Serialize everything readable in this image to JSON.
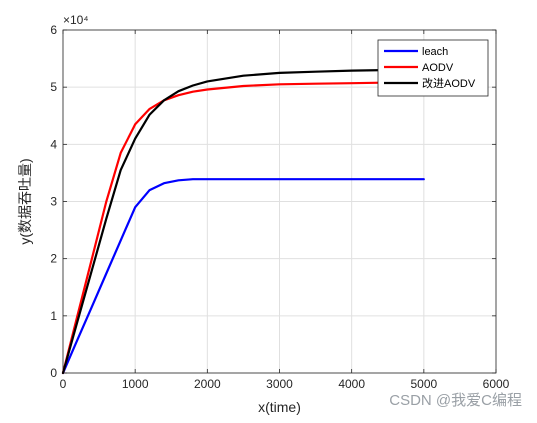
{
  "chart_data": {
    "type": "line",
    "xlabel": "x(time)",
    "ylabel": "y(数据吞吐量)",
    "exponent_label": "×10⁴",
    "xlim": [
      0,
      6000
    ],
    "ylim": [
      0,
      60000
    ],
    "xticks": [
      0,
      1000,
      2000,
      3000,
      4000,
      5000,
      6000
    ],
    "yticks": [
      0,
      10000,
      20000,
      30000,
      40000,
      50000,
      60000
    ],
    "ytick_labels": [
      "0",
      "1",
      "2",
      "3",
      "4",
      "5",
      "6"
    ],
    "grid": true,
    "legend_position": "top-right",
    "series": [
      {
        "name": "leach",
        "color": "#0000ff",
        "x": [
          0,
          200,
          400,
          600,
          800,
          1000,
          1200,
          1400,
          1600,
          1800,
          2000,
          3000,
          4000,
          5000
        ],
        "y": [
          0,
          5800,
          11600,
          17400,
          23200,
          29000,
          32000,
          33200,
          33700,
          33900,
          33900,
          33900,
          33900,
          33900
        ]
      },
      {
        "name": "AODV",
        "color": "#ff0000",
        "x": [
          0,
          200,
          400,
          600,
          800,
          1000,
          1200,
          1400,
          1600,
          1800,
          2000,
          2500,
          3000,
          3500,
          4000,
          4500,
          5000
        ],
        "y": [
          0,
          10000,
          20000,
          30000,
          38500,
          43500,
          46200,
          47700,
          48600,
          49200,
          49600,
          50200,
          50500,
          50600,
          50700,
          50800,
          50900
        ]
      },
      {
        "name": "改进AODV",
        "color": "#000000",
        "x": [
          0,
          200,
          400,
          600,
          800,
          1000,
          1200,
          1400,
          1600,
          1800,
          2000,
          2500,
          3000,
          3500,
          4000,
          4500,
          5000
        ],
        "y": [
          0,
          9000,
          18000,
          27000,
          35500,
          41000,
          45200,
          47700,
          49300,
          50300,
          51000,
          52000,
          52500,
          52700,
          52900,
          53000,
          53100
        ]
      }
    ]
  },
  "watermark": "CSDN @我爱C编程"
}
